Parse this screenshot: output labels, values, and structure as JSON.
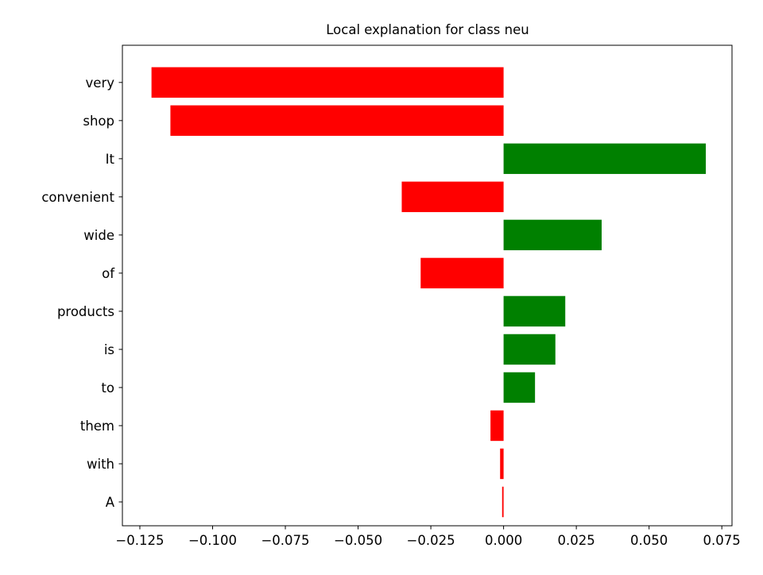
{
  "chart_data": {
    "type": "bar",
    "orientation": "horizontal",
    "title": "Local explanation for class neu",
    "xlabel": "",
    "ylabel": "",
    "categories": [
      "very",
      "shop",
      "It",
      "convenient",
      "wide",
      "of",
      "products",
      "is",
      "to",
      "them",
      "with",
      "A"
    ],
    "values": [
      -0.121,
      -0.1145,
      0.0695,
      -0.035,
      0.0337,
      -0.0285,
      0.0212,
      0.0178,
      0.0108,
      -0.0045,
      -0.0012,
      -0.0005
    ],
    "xlim": [
      -0.131,
      0.0785
    ],
    "xticks": [
      -0.125,
      -0.1,
      -0.075,
      -0.05,
      -0.025,
      0.0,
      0.025,
      0.05,
      0.075
    ],
    "xtick_labels": [
      "−0.125",
      "−0.100",
      "−0.075",
      "−0.050",
      "−0.025",
      "0.000",
      "0.025",
      "0.050",
      "0.075"
    ],
    "colors": {
      "positive": "#008000",
      "negative": "#ff0000"
    },
    "grid": false,
    "legend": false
  }
}
